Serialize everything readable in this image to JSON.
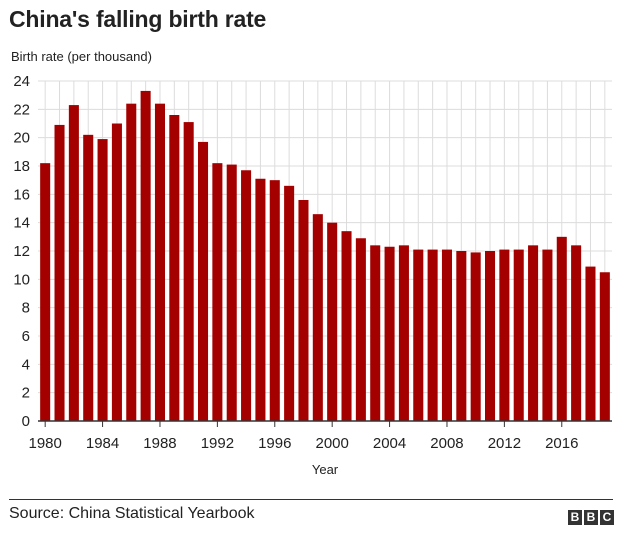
{
  "header": {
    "title": "China's falling birth rate"
  },
  "footer": {
    "source": "Source: China Statistical Yearbook",
    "logo": [
      "B",
      "B",
      "C"
    ]
  },
  "colors": {
    "bar": "#a50000",
    "grid": "#dcdcdc",
    "axis": "#333333"
  },
  "chart_data": {
    "type": "bar",
    "title": "China's falling birth rate",
    "ylabel": "Birth rate (per thousand)",
    "xlabel": "Year",
    "ylim": [
      0,
      24
    ],
    "yticks": [
      0,
      2,
      4,
      6,
      8,
      10,
      12,
      14,
      16,
      18,
      20,
      22,
      24
    ],
    "xticks": [
      1980,
      1984,
      1988,
      1992,
      1996,
      2000,
      2004,
      2008,
      2012,
      2016
    ],
    "grid": true,
    "categories": [
      1980,
      1981,
      1982,
      1983,
      1984,
      1985,
      1986,
      1987,
      1988,
      1989,
      1990,
      1991,
      1992,
      1993,
      1994,
      1995,
      1996,
      1997,
      1998,
      1999,
      2000,
      2001,
      2002,
      2003,
      2004,
      2005,
      2006,
      2007,
      2008,
      2009,
      2010,
      2011,
      2012,
      2013,
      2014,
      2015,
      2016,
      2017,
      2018,
      2019
    ],
    "values": [
      18.2,
      20.9,
      22.3,
      20.2,
      19.9,
      21.0,
      22.4,
      23.3,
      22.4,
      21.6,
      21.1,
      19.7,
      18.2,
      18.1,
      17.7,
      17.1,
      17.0,
      16.6,
      15.6,
      14.6,
      14.0,
      13.4,
      12.9,
      12.4,
      12.3,
      12.4,
      12.1,
      12.1,
      12.1,
      12.0,
      11.9,
      12.0,
      12.1,
      12.1,
      12.4,
      12.1,
      13.0,
      12.4,
      10.9,
      10.5
    ]
  }
}
